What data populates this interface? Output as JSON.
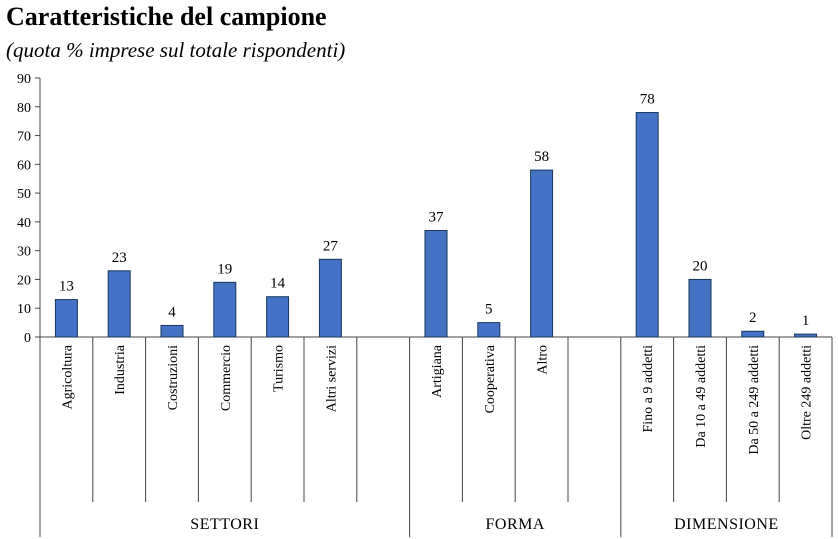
{
  "title": "Caratteristiche del campione",
  "subtitle": "(quota % imprese sul totale rispondenti)",
  "colors": {
    "bar": "#4472C4",
    "bar_stroke": "#17375E",
    "axis": "#444444"
  },
  "chart_data": {
    "type": "bar",
    "title": "Caratteristiche del campione",
    "subtitle": "(quota % imprese sul totale rispondenti)",
    "ylim": [
      0,
      90
    ],
    "yticks": [
      0,
      10,
      20,
      30,
      40,
      50,
      60,
      70,
      80,
      90
    ],
    "grid": false,
    "legend": "none",
    "groups": [
      {
        "name": "SETTORI",
        "categories": [
          "Agricoltura",
          "Industria",
          "Costruzioni",
          "Commercio",
          "Turismo",
          "Altri servizi"
        ],
        "values": [
          13,
          23,
          4,
          19,
          14,
          27
        ]
      },
      {
        "name": "FORMA",
        "categories": [
          "Artigiana",
          "Cooperativa",
          "Altro"
        ],
        "values": [
          37,
          5,
          58
        ]
      },
      {
        "name": "DIMENSIONE",
        "categories": [
          "Fino a 9 addetti",
          "Da 10 a 49 addetti",
          "Da 50 a 249 addetti",
          "Oltre 249 addetti"
        ],
        "values": [
          78,
          20,
          2,
          1
        ]
      }
    ]
  }
}
